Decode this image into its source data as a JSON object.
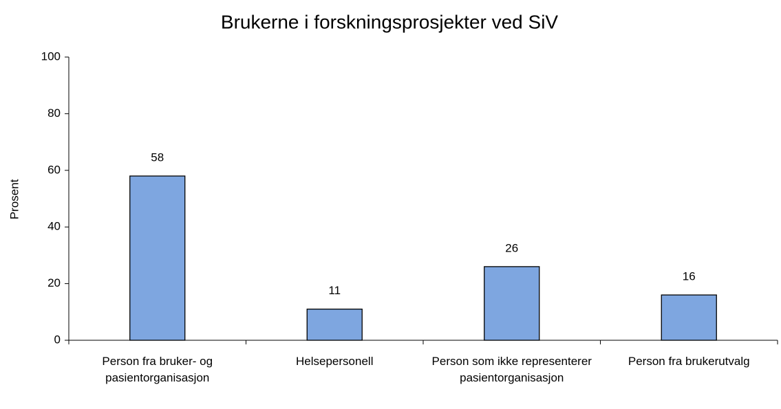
{
  "chart_data": {
    "type": "bar",
    "title": "Brukerne i forskningsprosjekter ved SiV",
    "y_label": "Prosent",
    "categories": [
      "Person fra bruker- og pasientorganisasjon",
      "Helsepersonell",
      "Person som ikke representerer pasientorganisasjon",
      "Person fra brukerutvalg"
    ],
    "values": [
      58,
      11,
      26,
      16
    ],
    "color": "#7ea6e0",
    "ylim": [
      0,
      100
    ],
    "yticks": [
      0,
      20,
      40,
      60,
      80,
      100
    ],
    "grid": false
  }
}
